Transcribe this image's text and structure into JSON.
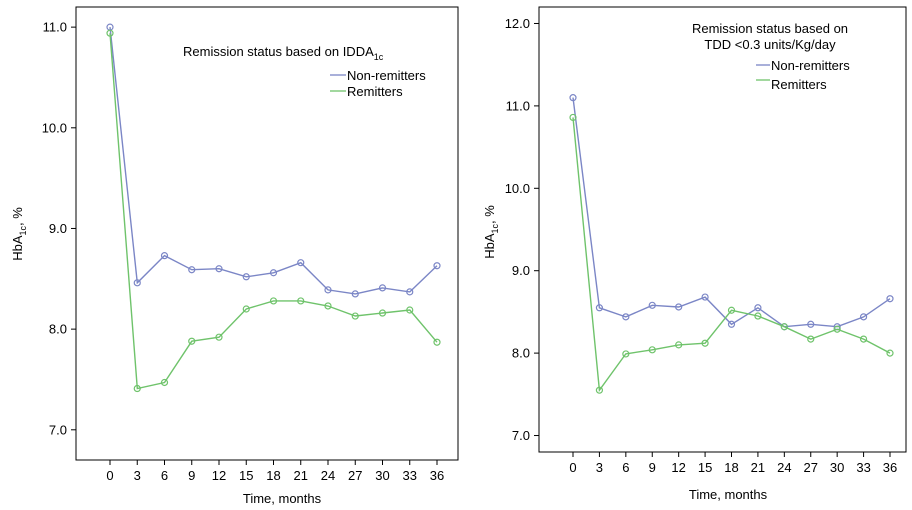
{
  "chart_data": [
    {
      "type": "line",
      "legend_title": "Remission status based on IDDA",
      "legend_title_sub": "1c",
      "xlabel": "Time, months",
      "ylabel_prefix": "HbA",
      "ylabel_sub": "1c",
      "ylabel_suffix": ", %",
      "x": [
        0,
        3,
        6,
        9,
        12,
        15,
        18,
        21,
        24,
        27,
        30,
        33,
        36
      ],
      "x_tick_labels": [
        "0",
        "3",
        "6",
        "9",
        "12",
        "15",
        "18",
        "21",
        "24",
        "27",
        "30",
        "33",
        "36"
      ],
      "y_tick_labels": [
        "7.0",
        "8.0",
        "9.0",
        "10.0",
        "11.0"
      ],
      "ylim": [
        6.7,
        11.2
      ],
      "grid": false,
      "legend_position": "top-right",
      "series": [
        {
          "name": "Non-remitters",
          "color": "#7b86c6",
          "values": [
            11.0,
            8.46,
            8.73,
            8.59,
            8.6,
            8.52,
            8.56,
            8.66,
            8.39,
            8.35,
            8.41,
            8.37,
            8.63
          ]
        },
        {
          "name": "Remitters",
          "color": "#6fc36b",
          "values": [
            10.94,
            7.41,
            7.47,
            7.88,
            7.92,
            8.2,
            8.28,
            8.28,
            8.23,
            8.13,
            8.16,
            8.19,
            7.87
          ]
        }
      ]
    },
    {
      "type": "line",
      "legend_title": "Remission status based on",
      "legend_title_line2": "TDD <0.3 units/Kg/day",
      "xlabel": "Time, months",
      "ylabel_prefix": "HbA",
      "ylabel_sub": "1c",
      "ylabel_suffix": ", %",
      "x": [
        0,
        3,
        6,
        9,
        12,
        15,
        18,
        21,
        24,
        27,
        30,
        33,
        36
      ],
      "x_tick_labels": [
        "0",
        "3",
        "6",
        "9",
        "12",
        "15",
        "18",
        "21",
        "24",
        "27",
        "30",
        "33",
        "36"
      ],
      "y_tick_labels": [
        "7.0",
        "8.0",
        "9.0",
        "10.0",
        "11.0",
        "12.0"
      ],
      "ylim": [
        6.8,
        12.2
      ],
      "grid": false,
      "legend_position": "top-right",
      "series": [
        {
          "name": "Non-remitters",
          "color": "#7b86c6",
          "values": [
            11.1,
            8.55,
            8.44,
            8.58,
            8.56,
            8.68,
            8.35,
            8.55,
            8.32,
            8.35,
            8.32,
            8.44,
            8.66
          ]
        },
        {
          "name": "Remitters",
          "color": "#6fc36b",
          "values": [
            10.86,
            7.55,
            7.99,
            8.04,
            8.1,
            8.12,
            8.52,
            8.45,
            8.32,
            8.17,
            8.29,
            8.17,
            8.0
          ]
        }
      ]
    }
  ]
}
